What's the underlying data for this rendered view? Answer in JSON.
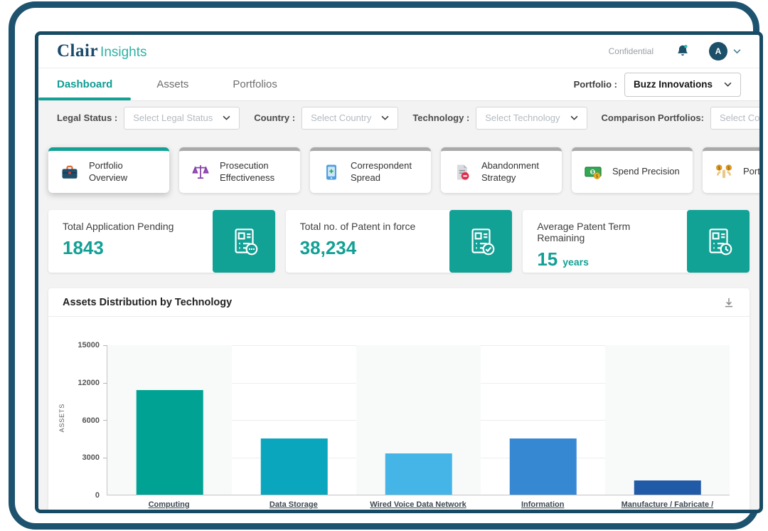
{
  "colors": {
    "brand_teal": "#12a195",
    "frame_navy": "#1d536e",
    "stat_value_teal": "#12a095",
    "inactive_tab_gray": "#a9a9a9"
  },
  "header": {
    "brand": "Clair",
    "brand_suffix": "Insights",
    "confidential": "Confidential",
    "avatar_initial": "A"
  },
  "nav": {
    "tabs": [
      {
        "label": "Dashboard",
        "active": true
      },
      {
        "label": "Assets",
        "active": false
      },
      {
        "label": "Portfolios",
        "active": false
      }
    ],
    "portfolio_label": "Portfolio :",
    "portfolio_value": "Buzz Innovations"
  },
  "filters": [
    {
      "label": "Legal Status :",
      "placeholder": "Select Legal Status"
    },
    {
      "label": "Country :",
      "placeholder": "Select Country"
    },
    {
      "label": "Technology :",
      "placeholder": "Select Technology"
    },
    {
      "label": "Comparison Portfolios:",
      "placeholder": "Select Comparison Portfolio"
    }
  ],
  "feature_tabs": [
    {
      "label": "Portfolio Overview",
      "icon": "briefcase-icon",
      "active": true
    },
    {
      "label": "Prosecution Effectiveness",
      "icon": "scale-icon",
      "active": false
    },
    {
      "label": "Correspondent Spread",
      "icon": "tablet-icon",
      "active": false
    },
    {
      "label": "Abandonment Strategy",
      "icon": "document-remove-icon",
      "active": false
    },
    {
      "label": "Spend Precision",
      "icon": "cash-icon",
      "active": false
    },
    {
      "label": "Portfolio Strength",
      "icon": "strength-icon",
      "active": false
    }
  ],
  "stats": [
    {
      "label": "Total Application Pending",
      "value": "1843",
      "suffix": "",
      "icon": "document-ellipsis-icon"
    },
    {
      "label": "Total no. of Patent in force",
      "value": "38,234",
      "suffix": "",
      "icon": "document-check-icon"
    },
    {
      "label": "Average Patent Term Remaining",
      "value": "15",
      "suffix": "years",
      "icon": "document-clock-icon"
    }
  ],
  "chart_card": {
    "title": "Assets Distribution by Technology"
  },
  "chart_data": {
    "type": "bar",
    "title": "Assets Distribution by Technology",
    "categories": [
      "Computing",
      "Data Storage",
      "Wired Voice Data Network",
      "Information Communication Device",
      "Manufacture / Fabricate / Construction"
    ],
    "values": [
      10800,
      4500,
      3300,
      4500,
      1150
    ],
    "bar_colors": [
      "#00a294",
      "#0aa6bd",
      "#45b5e8",
      "#3788d2",
      "#215ba8"
    ],
    "ylabel": "ASSETS",
    "xlabel": "",
    "ytick_labels_top_to_bottom": [
      "15000",
      "12000",
      "6000",
      "3000",
      "0"
    ],
    "ytick_values_bottom_to_top": [
      0,
      3000,
      6000,
      12000,
      15000
    ],
    "ylim": [
      0,
      15000
    ],
    "grid": true,
    "legend": false,
    "x_labels_underlined": true
  }
}
